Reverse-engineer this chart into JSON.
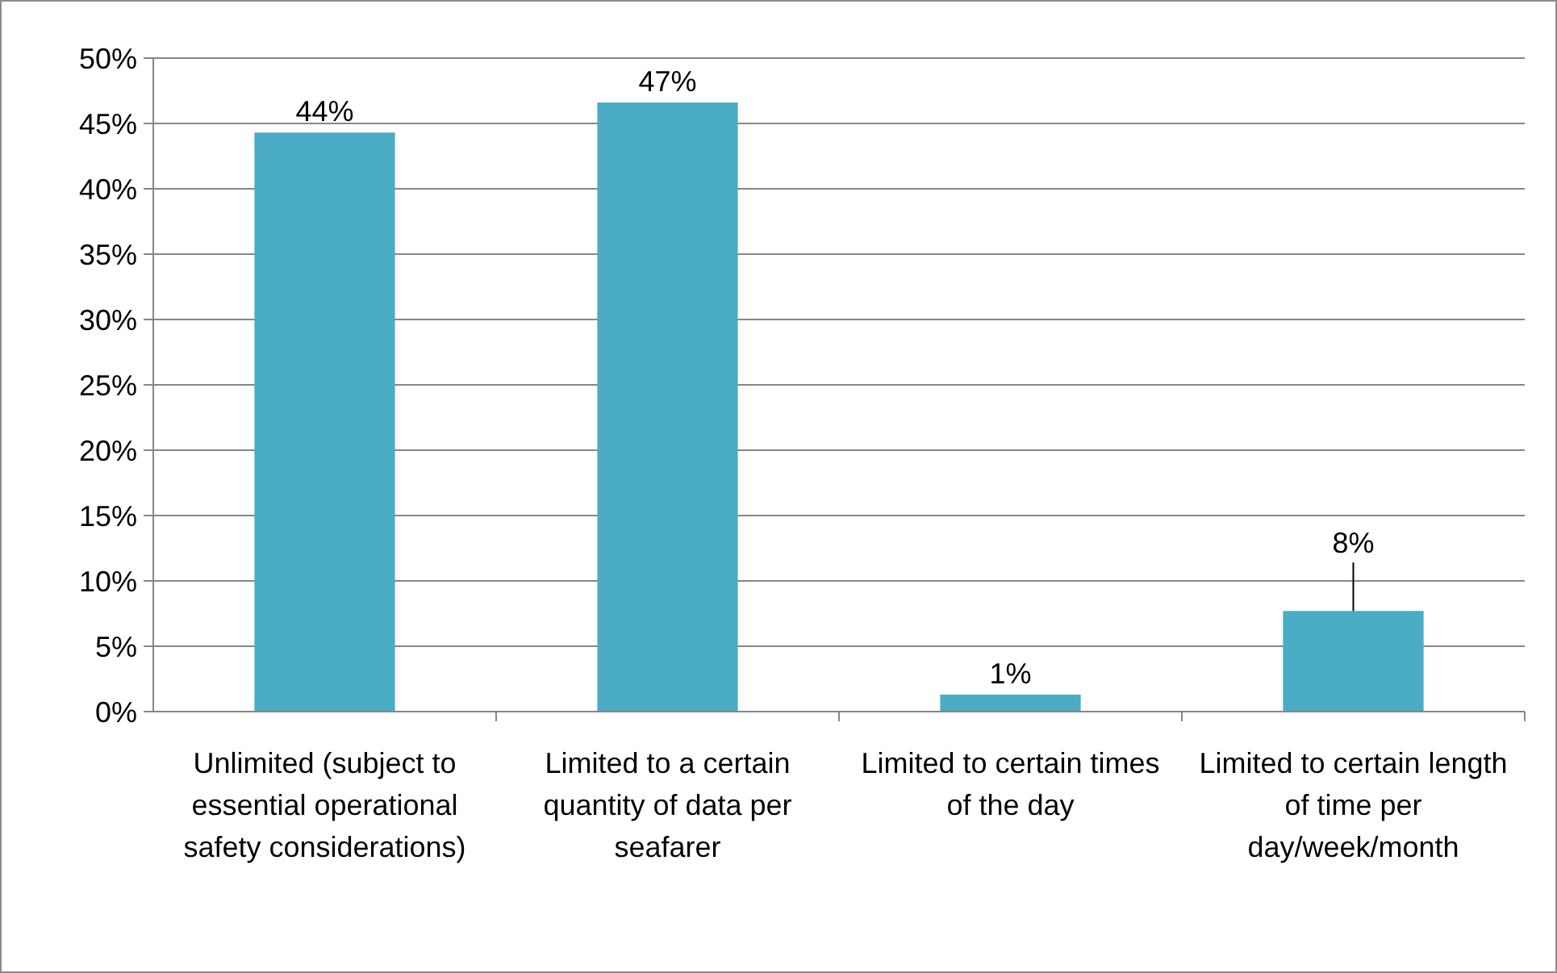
{
  "chart_data": {
    "type": "bar",
    "categories": [
      "Unlimited (subject to essential operational safety considerations)",
      "Limited to a certain quantity of data per seafarer",
      "Limited to certain times of the day",
      "Limited to certain length of time per day/week/month"
    ],
    "values": [
      44.3,
      46.6,
      1.3,
      7.7
    ],
    "value_labels": [
      "44%",
      "47%",
      "1%",
      "8%"
    ],
    "color": "#4bacc6",
    "ylim": [
      0,
      50
    ],
    "yticks": [
      {
        "value": 0,
        "label": "0%"
      },
      {
        "value": 5,
        "label": "5%"
      },
      {
        "value": 10,
        "label": "10%"
      },
      {
        "value": 15,
        "label": "15%"
      },
      {
        "value": 20,
        "label": "20%"
      },
      {
        "value": 25,
        "label": "25%"
      },
      {
        "value": 30,
        "label": "30%"
      },
      {
        "value": 35,
        "label": "35%"
      },
      {
        "value": 40,
        "label": "40%"
      },
      {
        "value": 45,
        "label": "45%"
      },
      {
        "value": 50,
        "label": "50%"
      }
    ],
    "grid": "y"
  }
}
